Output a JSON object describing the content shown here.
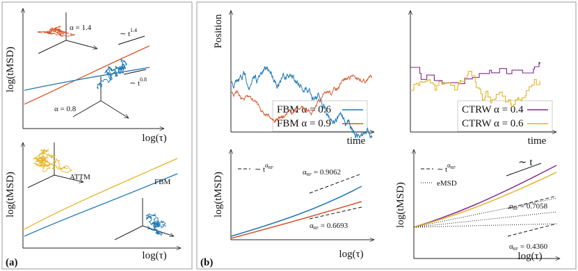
{
  "panel_a": {
    "label": "(a)",
    "top": {
      "y_label": "log(tMSD)",
      "x_label": "log(τ)",
      "alpha_1": "α = 1.4",
      "alpha_2": "α = 0.8",
      "slope_1": {
        "base": "∼ t",
        "exp": "1.4"
      },
      "slope_2": {
        "base": "∼ t",
        "exp": "0.8"
      }
    },
    "bottom": {
      "y_label": "log(tMSD)",
      "x_label": "log(τ)",
      "attm": "ATTM",
      "fbm": "FBM"
    }
  },
  "panel_b": {
    "label": "(b)",
    "fbm_traj": {
      "y_label": "Position",
      "x_label": "time",
      "legend": [
        {
          "name": "FBM α = 0.6",
          "color": "#1f77b4"
        },
        {
          "name": "FBM α = 0.9",
          "color": "#d9552b"
        }
      ]
    },
    "ctrw_traj": {
      "x_label": "time",
      "legend": [
        {
          "name": "CTRW α = 0.4",
          "color": "#7d2a91"
        },
        {
          "name": "CTRW α = 0.6",
          "color": "#e6b325"
        }
      ]
    },
    "fbm_msd": {
      "y_label": "log(tMSD)",
      "x_label": "log(τ)",
      "fit_legend": {
        "base": "∼ t",
        "exp": "α",
        "exp_sub": "RF"
      },
      "fit_1": {
        "symbol": "α",
        "sub": "RF",
        "rest": " = 0.9062"
      },
      "fit_2": {
        "symbol": "α",
        "sub": "RF",
        "rest": " = 0.6693"
      }
    },
    "ctrw_msd": {
      "y_label": "log(tMSD)",
      "x_label": "log(τ)",
      "fit_legend": {
        "base": "∼ t",
        "exp": "α",
        "exp_sub": "RF"
      },
      "emsd": "eMSD",
      "slope": "∼ t",
      "fit_1": {
        "symbol": "α",
        "sub": "RF",
        "rest": " = 0.7058"
      },
      "fit_2": {
        "symbol": "α",
        "sub": "RF",
        "rest": " = 0.4360"
      }
    }
  }
}
